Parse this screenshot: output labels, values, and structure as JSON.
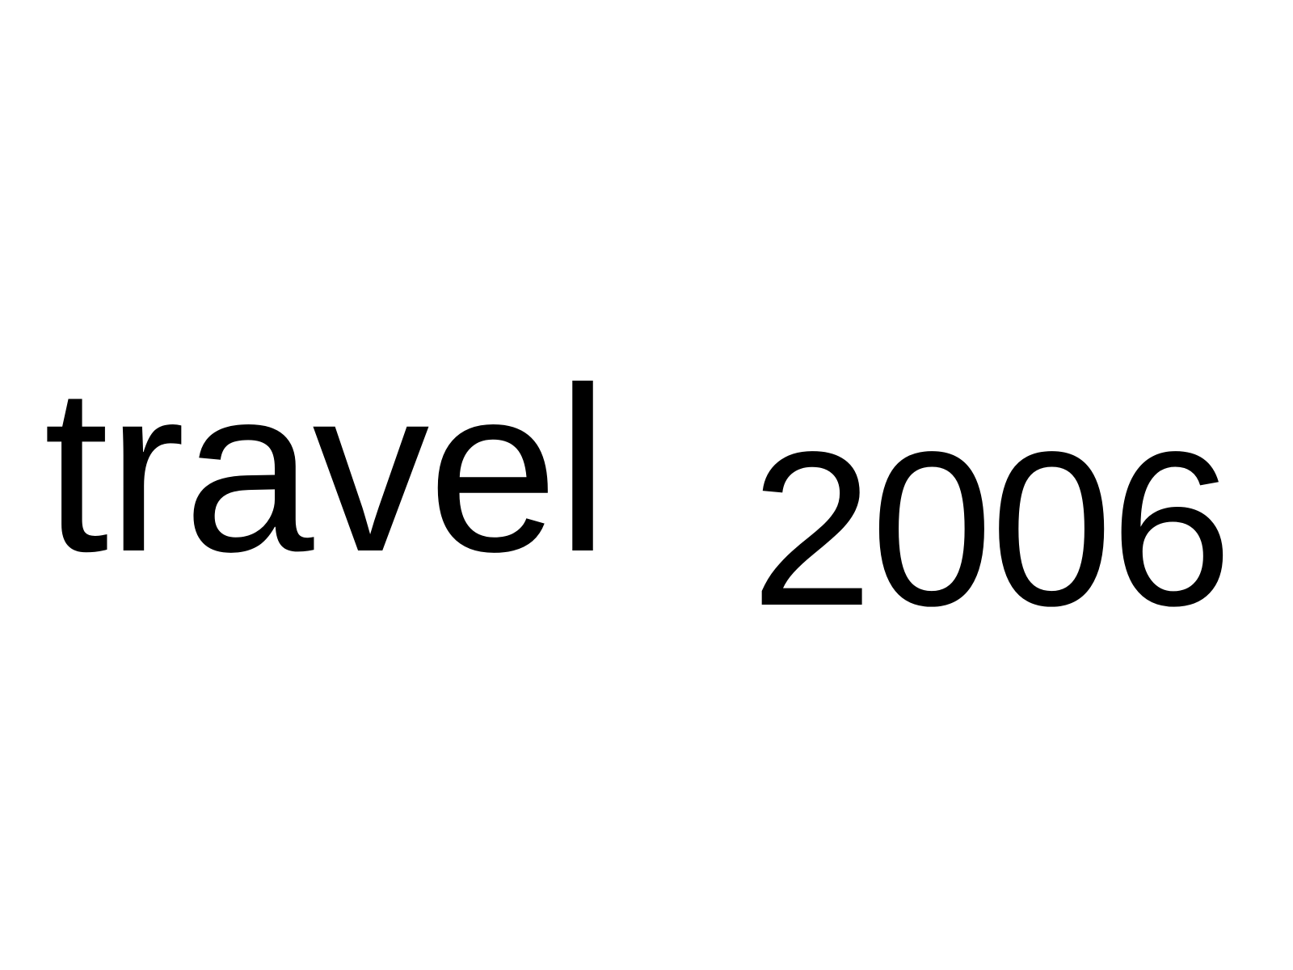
{
  "text": {
    "word": "travel",
    "year": "2006"
  },
  "colors": {
    "background": "#ffffff",
    "text": "#000000"
  }
}
